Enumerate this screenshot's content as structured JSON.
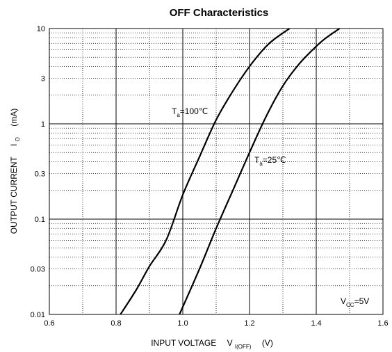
{
  "chart_data": {
    "type": "line",
    "title": "OFF Characteristics",
    "xlabel": {
      "main": "INPUT VOLTAGE",
      "sym": "V",
      "sub": "I(OFF)",
      "unit": "(V)"
    },
    "ylabel": {
      "main": "OUTPUT CURRENT",
      "sym": "I",
      "sub": "O",
      "unit": "(mA)"
    },
    "xlim": [
      0.6,
      1.6
    ],
    "ylim": [
      0.01,
      10
    ],
    "yscale": "log",
    "grid": true,
    "xticks": [
      0.6,
      0.8,
      1.0,
      1.2,
      1.4,
      1.6
    ],
    "xtick_labels": [
      "0.6",
      "0.8",
      "1.0",
      "1.2",
      "1.4",
      "1.6"
    ],
    "yticks": [
      0.01,
      0.03,
      0.1,
      0.3,
      1,
      3,
      10
    ],
    "ytick_labels": [
      "0.01",
      "0.03",
      "0.1",
      "0.3",
      "1",
      "3",
      "10"
    ],
    "series": [
      {
        "label": {
          "sym": "T",
          "sub": "a",
          "rest": "=100℃"
        },
        "x": [
          0.813,
          0.86,
          0.9,
          0.95,
          1.0,
          1.05,
          1.1,
          1.15,
          1.2,
          1.25,
          1.28,
          1.32
        ],
        "y": [
          0.01,
          0.018,
          0.032,
          0.06,
          0.18,
          0.45,
          1.1,
          2.2,
          4.0,
          6.5,
          8.0,
          10
        ]
      },
      {
        "label": {
          "sym": "T",
          "sub": "a",
          "rest": "=25℃"
        },
        "x": [
          0.99,
          1.05,
          1.1,
          1.15,
          1.2,
          1.25,
          1.3,
          1.35,
          1.4,
          1.43,
          1.47
        ],
        "y": [
          0.01,
          0.03,
          0.08,
          0.2,
          0.5,
          1.2,
          2.5,
          4.3,
          6.5,
          8.0,
          10
        ]
      }
    ],
    "annotation": {
      "sym": "V",
      "sub": "CC",
      "rest": "=5V"
    }
  }
}
